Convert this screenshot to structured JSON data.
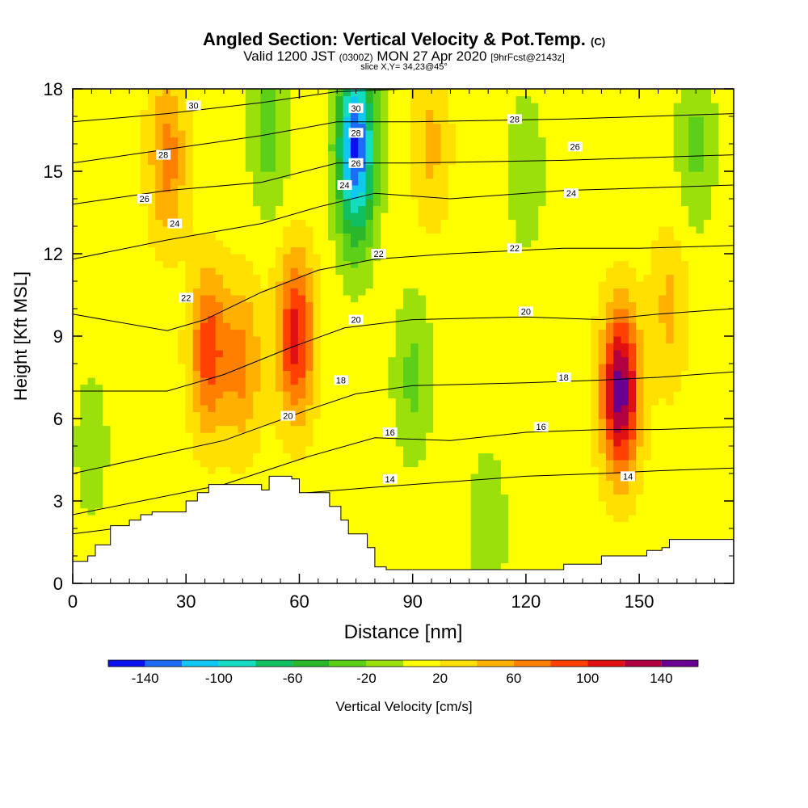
{
  "header": {
    "title": "Angled Section: Vertical Velocity & Pot.Temp.",
    "title_unit": "(C)",
    "valid_main_a": "Valid 1200 JST",
    "valid_small_a": "(0300Z)",
    "valid_main_b": "MON 27 Apr 2020",
    "valid_small_b": "[9hrFcst@2143z]",
    "slice": "slice X,Y= 34,23@45°"
  },
  "chart_data": {
    "type": "heatmap",
    "xlabel": "Distance [nm]",
    "ylabel": "Height [Kft MSL]",
    "xlim": [
      0,
      175
    ],
    "ylim": [
      0,
      18
    ],
    "x_ticks": [
      0,
      30,
      60,
      90,
      120,
      150
    ],
    "y_ticks": [
      0,
      3,
      6,
      9,
      12,
      15,
      18
    ],
    "colorbar": {
      "label": "Vertical Velocity [cm/s]",
      "bounds": [
        -160,
        -140,
        -120,
        -100,
        -80,
        -60,
        -40,
        -20,
        0,
        20,
        40,
        60,
        80,
        100,
        120,
        140,
        160
      ],
      "tick_labels": [
        -140,
        -100,
        -60,
        -20,
        20,
        60,
        100,
        140
      ],
      "colors": [
        "#0a10ee",
        "#1e6cf5",
        "#0fc7f0",
        "#14dcc0",
        "#10c060",
        "#2ab82a",
        "#5cd018",
        "#9be00a",
        "#ffff00",
        "#ffe000",
        "#ffb000",
        "#ff8000",
        "#ff4000",
        "#e01010",
        "#b00040",
        "#6a0090"
      ]
    },
    "velocity_features": [
      {
        "x": 59,
        "y": 9.0,
        "value": 110
      },
      {
        "x": 36,
        "y": 8.5,
        "value": 90
      },
      {
        "x": 45,
        "y": 8.0,
        "value": 65
      },
      {
        "x": 145,
        "y": 7.0,
        "value": 150
      },
      {
        "x": 75,
        "y": 16.5,
        "value": -100
      },
      {
        "x": 75,
        "y": 14.5,
        "value": -50
      },
      {
        "x": 90,
        "y": 7.5,
        "value": -25
      },
      {
        "x": 52,
        "y": 16.5,
        "value": -30
      },
      {
        "x": 25,
        "y": 15.5,
        "value": 70
      },
      {
        "x": 95,
        "y": 16.0,
        "value": 45
      },
      {
        "x": 158,
        "y": 10.0,
        "value": 45
      },
      {
        "x": 120,
        "y": 15.0,
        "value": -15
      },
      {
        "x": 165,
        "y": 16.0,
        "value": -25
      },
      {
        "x": 110,
        "y": 2.0,
        "value": -15
      },
      {
        "x": 5,
        "y": 5.0,
        "value": -10
      }
    ],
    "isentropes": [
      {
        "value": 14,
        "pts": [
          [
            0,
            1.8
          ],
          [
            40,
            2.5
          ],
          [
            62,
            3.3
          ],
          [
            80,
            3.5
          ],
          [
            100,
            3.7
          ],
          [
            120,
            3.9
          ],
          [
            140,
            4.0
          ],
          [
            155,
            4.1
          ],
          [
            175,
            4.2
          ]
        ]
      },
      {
        "value": 16,
        "pts": [
          [
            0,
            2.5
          ],
          [
            40,
            3.6
          ],
          [
            62,
            4.6
          ],
          [
            80,
            5.3
          ],
          [
            100,
            5.2
          ],
          [
            120,
            5.5
          ],
          [
            140,
            5.6
          ],
          [
            155,
            5.6
          ],
          [
            175,
            5.7
          ]
        ]
      },
      {
        "value": 18,
        "pts": [
          [
            0,
            4.0
          ],
          [
            40,
            5.2
          ],
          [
            62,
            6.3
          ],
          [
            75,
            6.9
          ],
          [
            90,
            7.2
          ],
          [
            120,
            7.3
          ],
          [
            140,
            7.4
          ],
          [
            155,
            7.5
          ],
          [
            175,
            7.7
          ]
        ]
      },
      {
        "value": 20,
        "pts": [
          [
            0,
            7.0
          ],
          [
            25,
            7.0
          ],
          [
            40,
            7.6
          ],
          [
            58,
            8.6
          ],
          [
            72,
            9.3
          ],
          [
            90,
            9.6
          ],
          [
            120,
            9.7
          ],
          [
            140,
            9.6
          ],
          [
            155,
            9.8
          ],
          [
            175,
            10.0
          ]
        ]
      },
      {
        "value": 22,
        "pts": [
          [
            0,
            9.8
          ],
          [
            25,
            9.2
          ],
          [
            35,
            9.6
          ],
          [
            50,
            10.6
          ],
          [
            65,
            11.4
          ],
          [
            80,
            11.8
          ],
          [
            100,
            12.0
          ],
          [
            130,
            12.2
          ],
          [
            150,
            12.2
          ],
          [
            175,
            12.3
          ]
        ]
      },
      {
        "value": 24,
        "pts": [
          [
            0,
            11.8
          ],
          [
            25,
            12.5
          ],
          [
            50,
            13.1
          ],
          [
            65,
            13.7
          ],
          [
            80,
            14.2
          ],
          [
            100,
            14.0
          ],
          [
            130,
            14.3
          ],
          [
            175,
            14.5
          ]
        ]
      },
      {
        "value": 26,
        "pts": [
          [
            0,
            13.8
          ],
          [
            25,
            14.3
          ],
          [
            50,
            14.6
          ],
          [
            70,
            15.3
          ],
          [
            90,
            15.3
          ],
          [
            130,
            15.4
          ],
          [
            175,
            15.6
          ]
        ]
      },
      {
        "value": 28,
        "pts": [
          [
            0,
            15.3
          ],
          [
            25,
            15.8
          ],
          [
            50,
            16.3
          ],
          [
            70,
            16.8
          ],
          [
            90,
            16.8
          ],
          [
            130,
            16.9
          ],
          [
            175,
            17.1
          ]
        ]
      },
      {
        "value": 30,
        "pts": [
          [
            0,
            16.8
          ],
          [
            25,
            17.1
          ],
          [
            50,
            17.5
          ],
          [
            70,
            17.9
          ],
          [
            90,
            18.0
          ],
          [
            130,
            18.0
          ],
          [
            175,
            18.0
          ]
        ]
      }
    ],
    "contour_labels": [
      {
        "text": "30",
        "x": 32,
        "y": 17.4
      },
      {
        "text": "28",
        "x": 24,
        "y": 15.6
      },
      {
        "text": "26",
        "x": 19,
        "y": 14.0
      },
      {
        "text": "24",
        "x": 27,
        "y": 13.1
      },
      {
        "text": "22",
        "x": 30,
        "y": 10.4
      },
      {
        "text": "20",
        "x": 57,
        "y": 6.1
      },
      {
        "text": "30",
        "x": 75,
        "y": 17.3
      },
      {
        "text": "28",
        "x": 75,
        "y": 16.4
      },
      {
        "text": "26",
        "x": 75,
        "y": 15.3
      },
      {
        "text": "24",
        "x": 72,
        "y": 14.5
      },
      {
        "text": "22",
        "x": 81,
        "y": 12.0
      },
      {
        "text": "20",
        "x": 75,
        "y": 9.6
      },
      {
        "text": "18",
        "x": 71,
        "y": 7.4
      },
      {
        "text": "16",
        "x": 84,
        "y": 5.5
      },
      {
        "text": "14",
        "x": 84,
        "y": 3.8
      },
      {
        "text": "28",
        "x": 117,
        "y": 16.9
      },
      {
        "text": "26",
        "x": 133,
        "y": 15.9
      },
      {
        "text": "24",
        "x": 132,
        "y": 14.2
      },
      {
        "text": "22",
        "x": 117,
        "y": 12.2
      },
      {
        "text": "20",
        "x": 120,
        "y": 9.9
      },
      {
        "text": "18",
        "x": 130,
        "y": 7.5
      },
      {
        "text": "16",
        "x": 124,
        "y": 5.7
      },
      {
        "text": "14",
        "x": 147,
        "y": 3.9
      }
    ],
    "terrain": [
      [
        0,
        0.8
      ],
      [
        4,
        0.8
      ],
      [
        4,
        1.0
      ],
      [
        6,
        1.0
      ],
      [
        6,
        1.4
      ],
      [
        10,
        1.4
      ],
      [
        10,
        2.1
      ],
      [
        15,
        2.1
      ],
      [
        15,
        2.3
      ],
      [
        18,
        2.3
      ],
      [
        18,
        2.5
      ],
      [
        21,
        2.5
      ],
      [
        21,
        2.6
      ],
      [
        26,
        2.6
      ],
      [
        26,
        2.6
      ],
      [
        30,
        2.6
      ],
      [
        30,
        3.0
      ],
      [
        33,
        3.0
      ],
      [
        33,
        3.3
      ],
      [
        36,
        3.3
      ],
      [
        36,
        3.6
      ],
      [
        40,
        3.6
      ],
      [
        40,
        3.6
      ],
      [
        46,
        3.6
      ],
      [
        46,
        3.6
      ],
      [
        50,
        3.6
      ],
      [
        50,
        3.4
      ],
      [
        52,
        3.4
      ],
      [
        52,
        3.9
      ],
      [
        58,
        3.9
      ],
      [
        58,
        3.8
      ],
      [
        60,
        3.8
      ],
      [
        60,
        3.3
      ],
      [
        63,
        3.3
      ],
      [
        63,
        3.3
      ],
      [
        68,
        3.3
      ],
      [
        68,
        2.8
      ],
      [
        71,
        2.8
      ],
      [
        71,
        2.3
      ],
      [
        73,
        2.3
      ],
      [
        73,
        1.8
      ],
      [
        78,
        1.8
      ],
      [
        78,
        1.3
      ],
      [
        80,
        1.3
      ],
      [
        80,
        0.6
      ],
      [
        83,
        0.6
      ],
      [
        83,
        0.5
      ],
      [
        95,
        0.5
      ],
      [
        95,
        0.5
      ],
      [
        115,
        0.5
      ],
      [
        115,
        0.5
      ],
      [
        130,
        0.5
      ],
      [
        130,
        0.7
      ],
      [
        135,
        0.7
      ],
      [
        135,
        0.7
      ],
      [
        140,
        0.7
      ],
      [
        140,
        1.0
      ],
      [
        144,
        1.0
      ],
      [
        144,
        1.0
      ],
      [
        152,
        1.0
      ],
      [
        152,
        1.2
      ],
      [
        156,
        1.2
      ],
      [
        156,
        1.3
      ],
      [
        158,
        1.3
      ],
      [
        158,
        1.6
      ],
      [
        175,
        1.6
      ]
    ]
  }
}
